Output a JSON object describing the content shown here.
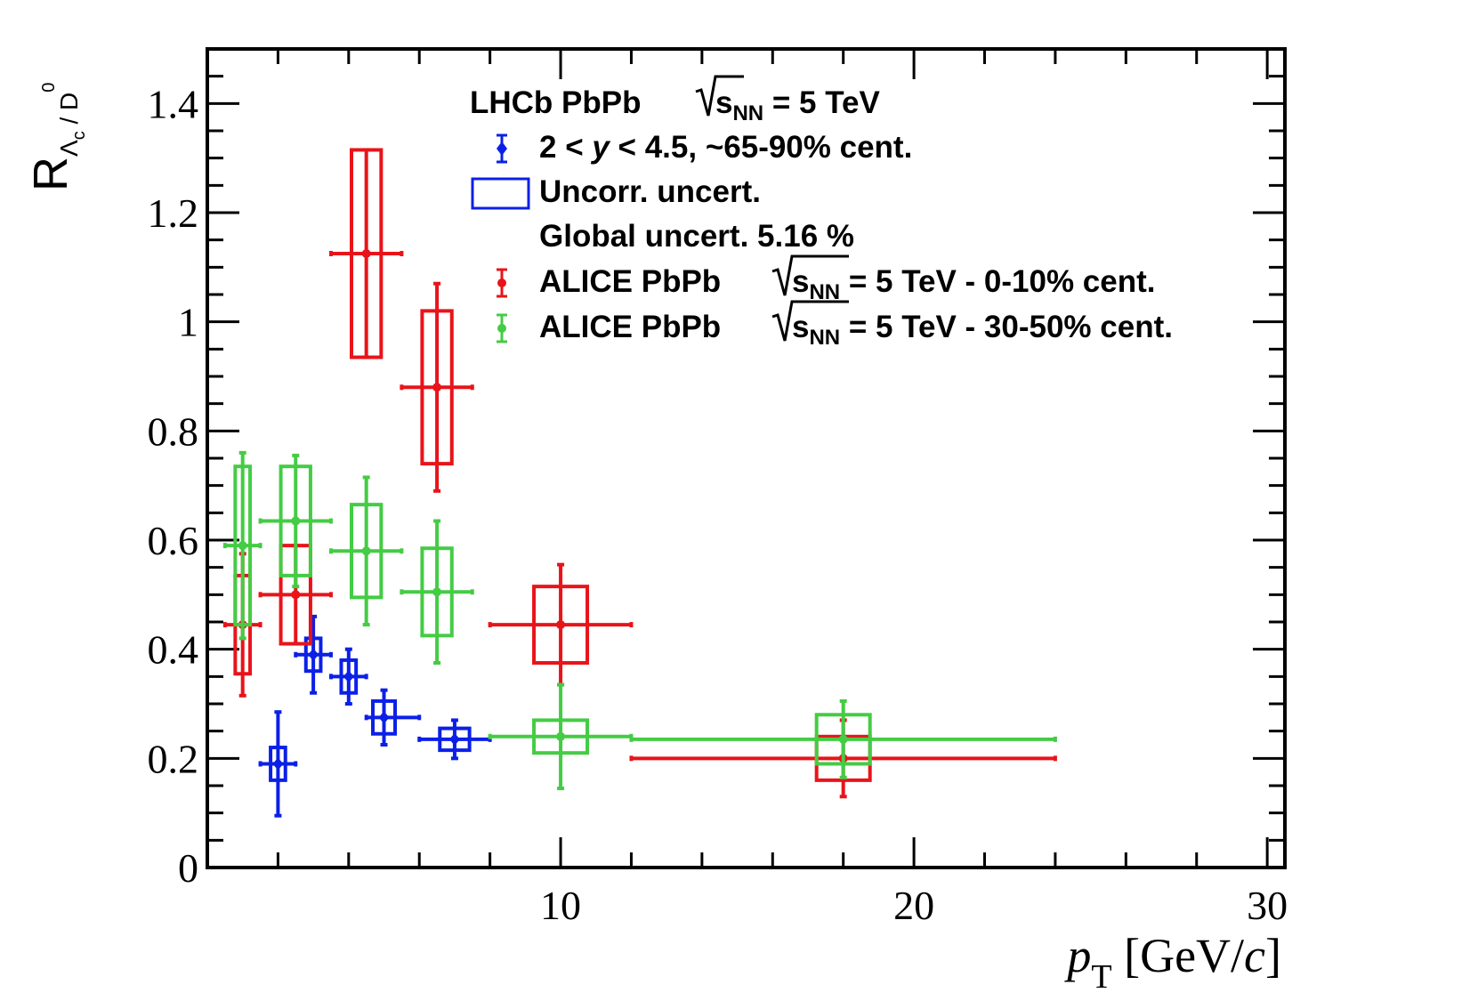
{
  "chart_data": {
    "type": "scatter",
    "title": "",
    "xlabel": {
      "var": "p",
      "sub": "T",
      "unit_open": " [GeV/",
      "unit_c": "c",
      "unit_close": "]"
    },
    "ylabel": {
      "main": "R",
      "sub_lambda": "Λ",
      "sub_c": "c",
      "sub_rest": " / D",
      "sup": "0"
    },
    "xlim": [
      0,
      30.5
    ],
    "ylim": [
      0,
      1.5
    ],
    "xticks": [
      10,
      20,
      30
    ],
    "yticks": [
      0,
      0.2,
      0.4,
      0.6,
      0.8,
      1,
      1.2,
      1.4
    ],
    "ytick_labels": [
      "0",
      "0.2",
      "0.4",
      "0.6",
      "0.8",
      "1",
      "1.2",
      "1.4"
    ],
    "grid": false,
    "legend": {
      "header": "LHCb PbPb",
      "header_energy": {
        "s": "s",
        "sub": "NN",
        "rest": " = 5 TeV"
      },
      "entries": [
        {
          "label_pre": "2 < ",
          "label_var": "y",
          "label_post": " < 4.5, ~65-90% cent."
        },
        {
          "label": "Uncorr. uncert."
        },
        {
          "label": "Global uncert. 5.16 %"
        },
        {
          "label_pre": "ALICE PbPb ",
          "label_post": " = 5 TeV - 0-10% cent."
        },
        {
          "label_pre": "ALICE PbPb ",
          "label_post": " = 5 TeV - 30-50% cent."
        }
      ]
    },
    "series": [
      {
        "name": "LHCb PbPb 2<y<4.5, ~65-90% cent.",
        "color": "#0b20e6",
        "marker": "diamond",
        "points": [
          {
            "x": 2.0,
            "y": 0.19,
            "xlo": 1.5,
            "xhi": 2.5,
            "stat": [
              0.095,
              0.095
            ],
            "sys": [
              0.03,
              0.03
            ]
          },
          {
            "x": 3.0,
            "y": 0.39,
            "xlo": 2.5,
            "xhi": 3.5,
            "stat": [
              0.07,
              0.07
            ],
            "sys": [
              0.03,
              0.03
            ]
          },
          {
            "x": 4.0,
            "y": 0.35,
            "xlo": 3.5,
            "xhi": 4.5,
            "stat": [
              0.05,
              0.05
            ],
            "sys": [
              0.03,
              0.03
            ]
          },
          {
            "x": 5.0,
            "y": 0.275,
            "xlo": 4.5,
            "xhi": 6.0,
            "stat": [
              0.05,
              0.05
            ],
            "sys": [
              0.03,
              0.03
            ]
          },
          {
            "x": 7.0,
            "y": 0.235,
            "xlo": 6.0,
            "xhi": 8.0,
            "stat": [
              0.035,
              0.035
            ],
            "sys": [
              0.02,
              0.02
            ]
          }
        ]
      },
      {
        "name": "ALICE PbPb 0-10% cent.",
        "color": "#e8141a",
        "marker": "circle",
        "points": [
          {
            "x": 1.0,
            "y": 0.445,
            "xlo": 0.5,
            "xhi": 1.5,
            "stat": [
              0.13,
              0.13
            ],
            "sys": [
              0.09,
              0.09
            ]
          },
          {
            "x": 2.5,
            "y": 0.5,
            "xlo": 1.5,
            "xhi": 3.5,
            "stat": [
              0.09,
              0.09
            ],
            "sys": [
              0.09,
              0.09
            ]
          },
          {
            "x": 4.5,
            "y": 1.125,
            "xlo": 3.5,
            "xhi": 5.5,
            "stat": [
              0.19,
              0.19
            ],
            "sys": [
              0.19,
              0.19
            ]
          },
          {
            "x": 6.5,
            "y": 0.88,
            "xlo": 5.5,
            "xhi": 7.5,
            "stat": [
              0.19,
              0.19
            ],
            "sys": [
              0.14,
              0.14
            ]
          },
          {
            "x": 10.0,
            "y": 0.445,
            "xlo": 8.0,
            "xhi": 12.0,
            "stat": [
              0.11,
              0.11
            ],
            "sys": [
              0.07,
              0.07
            ]
          },
          {
            "x": 18.0,
            "y": 0.2,
            "xlo": 12.0,
            "xhi": 24.0,
            "stat": [
              0.07,
              0.07
            ],
            "sys": [
              0.04,
              0.04
            ]
          }
        ]
      },
      {
        "name": "ALICE PbPb 30-50% cent.",
        "color": "#44cc44",
        "marker": "circle",
        "points": [
          {
            "x": 1.0,
            "y": 0.59,
            "xlo": 0.5,
            "xhi": 1.5,
            "stat": [
              0.17,
              0.17
            ],
            "sys": [
              0.145,
              0.145
            ]
          },
          {
            "x": 2.5,
            "y": 0.635,
            "xlo": 1.5,
            "xhi": 3.5,
            "stat": [
              0.12,
              0.12
            ],
            "sys": [
              0.1,
              0.1
            ]
          },
          {
            "x": 4.5,
            "y": 0.58,
            "xlo": 3.5,
            "xhi": 5.5,
            "stat": [
              0.135,
              0.135
            ],
            "sys": [
              0.085,
              0.085
            ]
          },
          {
            "x": 6.5,
            "y": 0.505,
            "xlo": 5.5,
            "xhi": 7.5,
            "stat": [
              0.13,
              0.13
            ],
            "sys": [
              0.08,
              0.08
            ]
          },
          {
            "x": 10.0,
            "y": 0.24,
            "xlo": 8.0,
            "xhi": 12.0,
            "stat": [
              0.095,
              0.095
            ],
            "sys": [
              0.03,
              0.03
            ]
          },
          {
            "x": 18.0,
            "y": 0.235,
            "xlo": 12.0,
            "xhi": 24.0,
            "stat": [
              0.07,
              0.07
            ],
            "sys": [
              0.045,
              0.045
            ]
          }
        ]
      }
    ]
  }
}
